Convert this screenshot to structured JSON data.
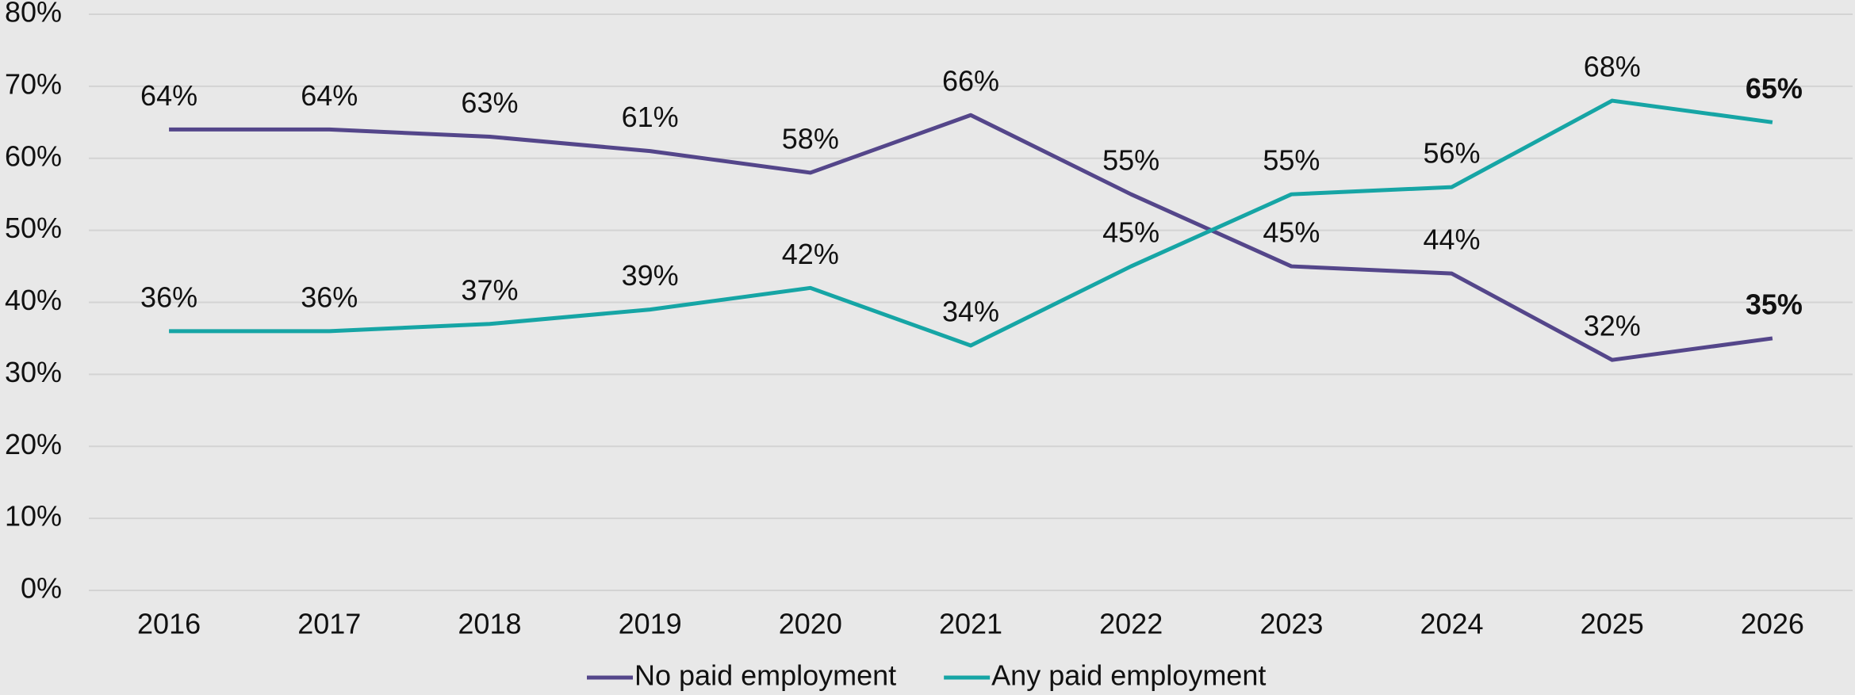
{
  "chart_data": {
    "type": "line",
    "categories": [
      "2016",
      "2017",
      "2018",
      "2019",
      "2020",
      "2021",
      "2022",
      "2023",
      "2024",
      "2025",
      "2026"
    ],
    "series": [
      {
        "name": "No paid employment",
        "color": "#54468a",
        "values": [
          64,
          64,
          63,
          61,
          58,
          66,
          55,
          45,
          44,
          32,
          35
        ],
        "value_labels": [
          "64%",
          "64%",
          "63%",
          "61%",
          "58%",
          "66%",
          "55%",
          "45%",
          "44%",
          "32%",
          "35%"
        ]
      },
      {
        "name": "Any paid employment",
        "color": "#16a5a5",
        "values": [
          36,
          36,
          37,
          39,
          42,
          34,
          45,
          55,
          56,
          68,
          65
        ],
        "value_labels": [
          "36%",
          "36%",
          "37%",
          "39%",
          "42%",
          "34%",
          "45%",
          "55%",
          "56%",
          "68%",
          "65%"
        ]
      }
    ],
    "ylim": [
      0,
      80
    ],
    "yticks": [
      {
        "value": 0,
        "label": "0%"
      },
      {
        "value": 10,
        "label": "10%"
      },
      {
        "value": 20,
        "label": "20%"
      },
      {
        "value": 30,
        "label": "30%"
      },
      {
        "value": 40,
        "label": "40%"
      },
      {
        "value": 50,
        "label": "50%"
      },
      {
        "value": 60,
        "label": "60%"
      },
      {
        "value": 70,
        "label": "70%"
      },
      {
        "value": 80,
        "label": "80%"
      }
    ],
    "grid": true,
    "legend": "bottom"
  }
}
